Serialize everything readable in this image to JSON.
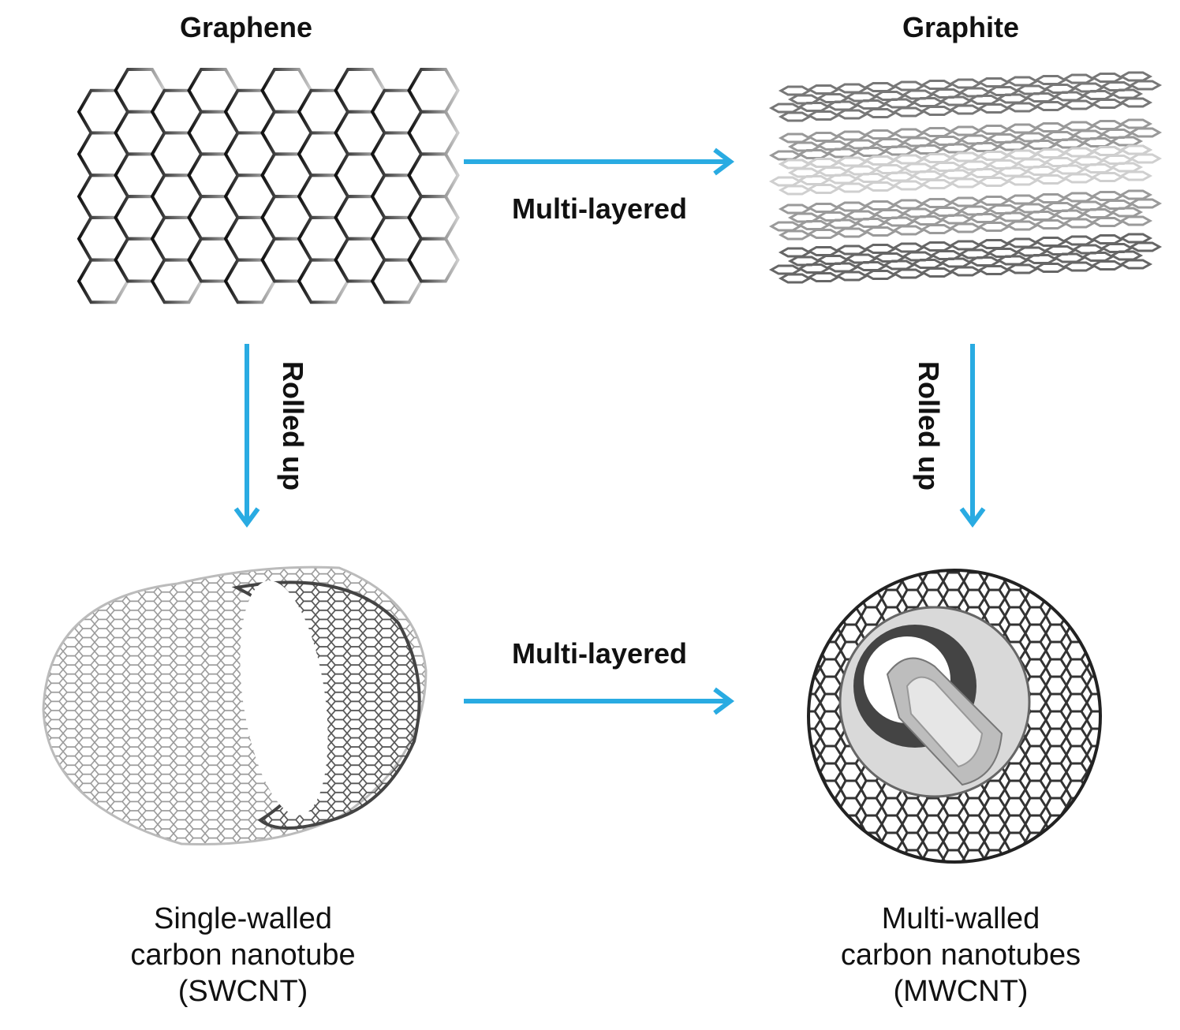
{
  "nodes": {
    "graphene": "Graphene",
    "graphite": "Graphite",
    "swcnt": [
      "Single-walled",
      "carbon nanotube",
      "(SWCNT)"
    ],
    "mwcnt": [
      "Multi-walled",
      "carbon nanotubes",
      "(MWCNT)"
    ]
  },
  "edges": {
    "top_arrow": "Multi-layered",
    "bottom_arrow": "Multi-layered",
    "left_down": "Rolled up",
    "right_down": "Rolled up"
  },
  "colors": {
    "arrow": "#29abe2",
    "ink": "#111111"
  }
}
